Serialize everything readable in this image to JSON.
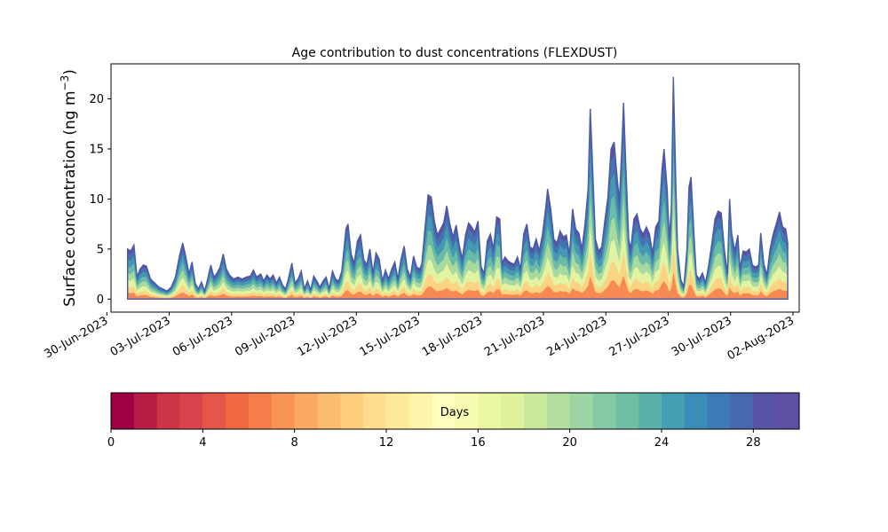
{
  "chart_data": {
    "type": "area",
    "stacked": true,
    "title": "Age contribution to dust concentrations (FLEXDUST)",
    "ylabel": "Surface concentration (ng m",
    "ylabel_sup": "−3",
    "ylabel_close": ")",
    "xlabel": "",
    "ylim": [
      -1.3,
      23.5
    ],
    "yticks": [
      0,
      5,
      10,
      15,
      20
    ],
    "x_start": "2023-06-30",
    "xlim_days": [
      0.2,
      33.3
    ],
    "xticks": [
      {
        "day": 0,
        "label": "30-Jun-2023"
      },
      {
        "day": 3,
        "label": "03-Jul-2023"
      },
      {
        "day": 6,
        "label": "06-Jul-2023"
      },
      {
        "day": 9,
        "label": "09-Jul-2023"
      },
      {
        "day": 12,
        "label": "12-Jul-2023"
      },
      {
        "day": 15,
        "label": "15-Jul-2023"
      },
      {
        "day": 18,
        "label": "18-Jul-2023"
      },
      {
        "day": 21,
        "label": "21-Jul-2023"
      },
      {
        "day": 24,
        "label": "24-Jul-2023"
      },
      {
        "day": 27,
        "label": "27-Jul-2023"
      },
      {
        "day": 30,
        "label": "30-Jul-2023"
      },
      {
        "day": 33,
        "label": "02-Aug-2023"
      }
    ],
    "total": [
      [
        1.0,
        5.0
      ],
      [
        1.15,
        4.8
      ],
      [
        1.3,
        5.4
      ],
      [
        1.45,
        2.2
      ],
      [
        1.6,
        3.0
      ],
      [
        1.75,
        3.4
      ],
      [
        1.9,
        3.3
      ],
      [
        2.1,
        2.0
      ],
      [
        2.3,
        1.6
      ],
      [
        2.5,
        1.2
      ],
      [
        2.7,
        1.0
      ],
      [
        2.9,
        0.8
      ],
      [
        3.1,
        1.2
      ],
      [
        3.3,
        2.2
      ],
      [
        3.5,
        4.4
      ],
      [
        3.65,
        5.6
      ],
      [
        3.8,
        4.2
      ],
      [
        3.95,
        2.5
      ],
      [
        4.1,
        3.7
      ],
      [
        4.25,
        1.6
      ],
      [
        4.4,
        1.0
      ],
      [
        4.55,
        1.7
      ],
      [
        4.7,
        0.8
      ],
      [
        4.85,
        2.0
      ],
      [
        5.0,
        3.4
      ],
      [
        5.15,
        2.2
      ],
      [
        5.3,
        2.6
      ],
      [
        5.45,
        3.2
      ],
      [
        5.6,
        4.5
      ],
      [
        5.75,
        3.0
      ],
      [
        5.9,
        2.4
      ],
      [
        6.1,
        2.0
      ],
      [
        6.3,
        2.2
      ],
      [
        6.5,
        2.0
      ],
      [
        6.7,
        2.2
      ],
      [
        6.9,
        2.3
      ],
      [
        7.05,
        2.9
      ],
      [
        7.2,
        2.2
      ],
      [
        7.4,
        2.5
      ],
      [
        7.55,
        1.8
      ],
      [
        7.7,
        2.4
      ],
      [
        7.85,
        2.0
      ],
      [
        8.0,
        2.4
      ],
      [
        8.15,
        1.6
      ],
      [
        8.3,
        2.2
      ],
      [
        8.45,
        1.4
      ],
      [
        8.6,
        1.0
      ],
      [
        8.75,
        2.2
      ],
      [
        8.9,
        3.6
      ],
      [
        9.05,
        1.6
      ],
      [
        9.2,
        2.0
      ],
      [
        9.35,
        2.8
      ],
      [
        9.5,
        1.0
      ],
      [
        9.65,
        1.8
      ],
      [
        9.8,
        0.9
      ],
      [
        9.95,
        2.3
      ],
      [
        10.1,
        1.8
      ],
      [
        10.25,
        1.2
      ],
      [
        10.4,
        1.8
      ],
      [
        10.55,
        2.2
      ],
      [
        10.7,
        1.0
      ],
      [
        10.85,
        2.8
      ],
      [
        11.0,
        2.0
      ],
      [
        11.15,
        1.8
      ],
      [
        11.3,
        2.8
      ],
      [
        11.5,
        7.0
      ],
      [
        11.6,
        7.5
      ],
      [
        11.75,
        4.5
      ],
      [
        11.9,
        3.6
      ],
      [
        12.05,
        5.8
      ],
      [
        12.2,
        6.4
      ],
      [
        12.35,
        4.0
      ],
      [
        12.5,
        3.4
      ],
      [
        12.65,
        5.0
      ],
      [
        12.8,
        2.6
      ],
      [
        12.95,
        4.6
      ],
      [
        13.1,
        4.0
      ],
      [
        13.25,
        1.8
      ],
      [
        13.4,
        2.9
      ],
      [
        13.55,
        2.0
      ],
      [
        13.7,
        3.0
      ],
      [
        13.85,
        3.7
      ],
      [
        14.0,
        2.0
      ],
      [
        14.15,
        4.0
      ],
      [
        14.3,
        5.3
      ],
      [
        14.45,
        3.0
      ],
      [
        14.6,
        2.2
      ],
      [
        14.75,
        4.3
      ],
      [
        14.9,
        3.2
      ],
      [
        15.05,
        3.0
      ],
      [
        15.15,
        3.5
      ],
      [
        15.3,
        7.0
      ],
      [
        15.45,
        10.4
      ],
      [
        15.6,
        10.2
      ],
      [
        15.75,
        7.8
      ],
      [
        15.9,
        6.4
      ],
      [
        16.05,
        7.0
      ],
      [
        16.2,
        7.6
      ],
      [
        16.35,
        9.3
      ],
      [
        16.5,
        7.5
      ],
      [
        16.65,
        6.2
      ],
      [
        16.8,
        7.4
      ],
      [
        16.95,
        5.4
      ],
      [
        17.1,
        4.0
      ],
      [
        17.25,
        6.4
      ],
      [
        17.4,
        7.6
      ],
      [
        17.55,
        7.2
      ],
      [
        17.7,
        6.7
      ],
      [
        17.85,
        7.8
      ],
      [
        18.0,
        3.2
      ],
      [
        18.15,
        2.6
      ],
      [
        18.3,
        5.8
      ],
      [
        18.45,
        6.5
      ],
      [
        18.6,
        5.0
      ],
      [
        18.75,
        8.2
      ],
      [
        18.9,
        8.0
      ],
      [
        19.0,
        3.6
      ],
      [
        19.15,
        4.2
      ],
      [
        19.3,
        3.8
      ],
      [
        19.45,
        3.6
      ],
      [
        19.6,
        3.5
      ],
      [
        19.75,
        4.2
      ],
      [
        19.9,
        3.0
      ],
      [
        20.05,
        6.5
      ],
      [
        20.2,
        7.5
      ],
      [
        20.35,
        5.2
      ],
      [
        20.5,
        5.0
      ],
      [
        20.65,
        6.0
      ],
      [
        20.8,
        4.8
      ],
      [
        20.95,
        6.4
      ],
      [
        21.1,
        9.0
      ],
      [
        21.2,
        11.0
      ],
      [
        21.35,
        9.0
      ],
      [
        21.5,
        6.0
      ],
      [
        21.65,
        5.6
      ],
      [
        21.8,
        6.8
      ],
      [
        21.95,
        6.2
      ],
      [
        22.1,
        6.4
      ],
      [
        22.25,
        4.4
      ],
      [
        22.4,
        9.0
      ],
      [
        22.55,
        7.0
      ],
      [
        22.7,
        6.6
      ],
      [
        22.85,
        5.0
      ],
      [
        23.0,
        7.5
      ],
      [
        23.15,
        11.0
      ],
      [
        23.25,
        19.0
      ],
      [
        23.35,
        14.0
      ],
      [
        23.5,
        6.0
      ],
      [
        23.65,
        4.8
      ],
      [
        23.8,
        5.2
      ],
      [
        23.95,
        7.8
      ],
      [
        24.1,
        10.2
      ],
      [
        24.25,
        15.0
      ],
      [
        24.4,
        15.7
      ],
      [
        24.55,
        12.0
      ],
      [
        24.65,
        9.8
      ],
      [
        24.75,
        14.2
      ],
      [
        24.85,
        19.6
      ],
      [
        24.95,
        14.0
      ],
      [
        25.1,
        6.0
      ],
      [
        25.2,
        5.0
      ],
      [
        25.35,
        8.0
      ],
      [
        25.5,
        8.5
      ],
      [
        25.65,
        7.0
      ],
      [
        25.8,
        6.5
      ],
      [
        25.95,
        7.2
      ],
      [
        26.1,
        6.5
      ],
      [
        26.25,
        4.5
      ],
      [
        26.4,
        7.2
      ],
      [
        26.55,
        7.8
      ],
      [
        26.7,
        13.0
      ],
      [
        26.8,
        15.0
      ],
      [
        26.95,
        11.0
      ],
      [
        27.05,
        6.0
      ],
      [
        27.15,
        9.0
      ],
      [
        27.25,
        22.2
      ],
      [
        27.35,
        13.0
      ],
      [
        27.45,
        5.0
      ],
      [
        27.6,
        2.0
      ],
      [
        27.75,
        1.2
      ],
      [
        27.9,
        5.0
      ],
      [
        28.0,
        11.2
      ],
      [
        28.1,
        12.2
      ],
      [
        28.25,
        6.0
      ],
      [
        28.35,
        2.4
      ],
      [
        28.5,
        2.0
      ],
      [
        28.65,
        2.6
      ],
      [
        28.8,
        1.6
      ],
      [
        28.95,
        3.4
      ],
      [
        29.1,
        5.6
      ],
      [
        29.25,
        8.0
      ],
      [
        29.4,
        8.8
      ],
      [
        29.55,
        8.6
      ],
      [
        29.7,
        5.0
      ],
      [
        29.85,
        2.5
      ],
      [
        29.95,
        10.0
      ],
      [
        30.05,
        6.6
      ],
      [
        30.2,
        4.8
      ],
      [
        30.35,
        6.4
      ],
      [
        30.45,
        3.0
      ],
      [
        30.6,
        4.8
      ],
      [
        30.75,
        4.7
      ],
      [
        30.9,
        5.0
      ],
      [
        31.05,
        3.4
      ],
      [
        31.2,
        3.2
      ],
      [
        31.35,
        3.4
      ],
      [
        31.45,
        6.6
      ],
      [
        31.6,
        3.5
      ],
      [
        31.75,
        2.4
      ],
      [
        31.9,
        5.0
      ],
      [
        32.05,
        6.5
      ],
      [
        32.2,
        7.5
      ],
      [
        32.35,
        8.7
      ],
      [
        32.5,
        7.2
      ],
      [
        32.65,
        7.0
      ],
      [
        32.75,
        5.6
      ],
      [
        32.75,
        0.0
      ]
    ],
    "colorbar": {
      "label": "Days",
      "min": 0,
      "max": 30,
      "ticks": [
        0,
        4,
        8,
        12,
        16,
        20,
        24,
        28
      ],
      "colors": [
        "#9e0142",
        "#b71c44",
        "#cd3445",
        "#d9444c",
        "#e55649",
        "#f16943",
        "#f57d4a",
        "#f99455",
        "#fca962",
        "#fdbd6f",
        "#fece7c",
        "#fedd8c",
        "#fee99a",
        "#fff4a9",
        "#fffebe",
        "#f6fbb1",
        "#ecf7a2",
        "#dff29b",
        "#cbe99d",
        "#b4df9f",
        "#9dd4a4",
        "#85caa5",
        "#70bfa5",
        "#5ab1a9",
        "#459fb2",
        "#3a8db6",
        "#3d7ab5",
        "#4767ae",
        "#5753a5",
        "#5e4fa2"
      ]
    }
  }
}
